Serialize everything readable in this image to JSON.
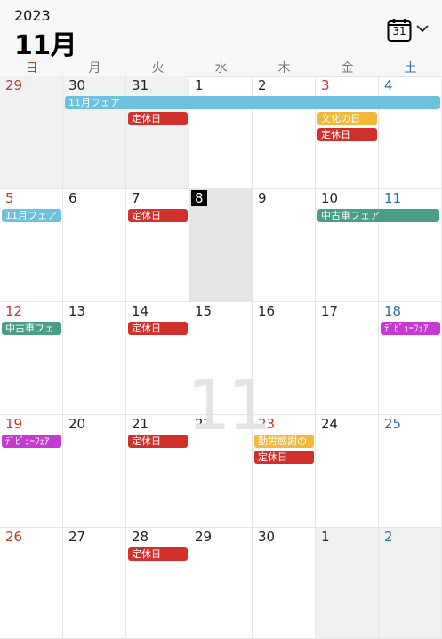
{
  "header": {
    "year": "2023",
    "month": "11月",
    "calendar_icon_number": "31"
  },
  "weekdays": [
    "日",
    "月",
    "火",
    "水",
    "木",
    "金",
    "土"
  ],
  "colors": {
    "sunday": "#c0392b",
    "saturday": "#2e6fa5",
    "fair_blue": "#6ec1dc",
    "closed_red": "#d0312d",
    "holiday_yellow": "#f0b93b",
    "used_car_teal": "#4a9e88",
    "debut_purple": "#c53ad0"
  },
  "watermark": "11",
  "weeks": [
    {
      "days": [
        "29",
        "30",
        "31",
        "1",
        "2",
        "3",
        "4"
      ]
    },
    {
      "days": [
        "5",
        "6",
        "7",
        "8",
        "9",
        "10",
        "11"
      ]
    },
    {
      "days": [
        "12",
        "13",
        "14",
        "15",
        "16",
        "17",
        "18"
      ]
    },
    {
      "days": [
        "19",
        "20",
        "21",
        "22",
        "23",
        "24",
        "25"
      ]
    },
    {
      "days": [
        "26",
        "27",
        "28",
        "29",
        "30",
        "1",
        "2"
      ]
    }
  ],
  "today": "8",
  "events": {
    "w1_fair": "11月フェア",
    "w1_closed_tue": "定休日",
    "w1_holiday": "文化の日",
    "w1_closed_fri": "定休日",
    "w2_fair": "11月フェア",
    "w2_closed_tue": "定休日",
    "w2_used_car": "中古車フェア",
    "w3_used_car": "中古車フェ",
    "w3_closed_tue": "定休日",
    "w3_debut": "ﾃﾞﾋﾞｭｰﾌｪｱ",
    "w4_debut": "ﾃﾞﾋﾞｭｰﾌｪｱ",
    "w4_closed_tue": "定休日",
    "w4_labor": "勤労感謝の",
    "w4_closed_thu": "定休日",
    "w5_closed_tue": "定休日"
  }
}
